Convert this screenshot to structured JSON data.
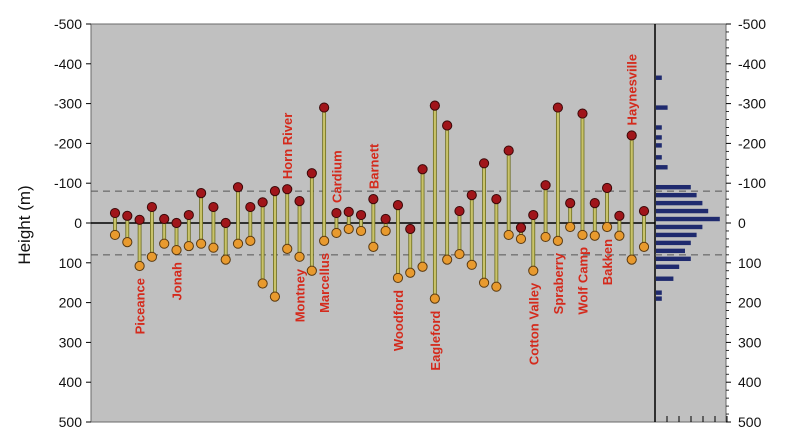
{
  "chart_data": {
    "type": "scatter",
    "ylabel": "Height (m)",
    "ylim": [
      -500,
      500
    ],
    "y_inverted": true,
    "y_ticks": [
      -500,
      -400,
      -300,
      -200,
      -100,
      0,
      100,
      200,
      300,
      400,
      500
    ],
    "reference_lines": [
      0,
      -80,
      80
    ],
    "grid": false,
    "colors": {
      "plot_bg": "#c0c0c0",
      "stem": "#6b6b1e",
      "top_marker": "#a0151a",
      "bottom_marker": "#e89a2e",
      "label": "#d42a1c",
      "histogram_bar": "#1f2a6e"
    },
    "stages": [
      {
        "top": -25,
        "bottom": 30
      },
      {
        "top": -18,
        "bottom": 48
      },
      {
        "top": -8,
        "bottom": 108
      },
      {
        "top": -40,
        "bottom": 85
      },
      {
        "top": -10,
        "bottom": 52
      },
      {
        "top": 0,
        "bottom": 68
      },
      {
        "top": -20,
        "bottom": 58
      },
      {
        "top": -75,
        "bottom": 52
      },
      {
        "top": -40,
        "bottom": 62
      },
      {
        "top": 0,
        "bottom": 92
      },
      {
        "top": -90,
        "bottom": 52
      },
      {
        "top": -40,
        "bottom": 45
      },
      {
        "top": -52,
        "bottom": 152
      },
      {
        "top": -80,
        "bottom": 185
      },
      {
        "top": -85,
        "bottom": 65
      },
      {
        "top": -55,
        "bottom": 85
      },
      {
        "top": -125,
        "bottom": 120
      },
      {
        "top": -290,
        "bottom": 45
      },
      {
        "top": -25,
        "bottom": 25
      },
      {
        "top": -28,
        "bottom": 15
      },
      {
        "top": -20,
        "bottom": 20
      },
      {
        "top": -60,
        "bottom": 60
      },
      {
        "top": -10,
        "bottom": 20
      },
      {
        "top": -45,
        "bottom": 138
      },
      {
        "top": 15,
        "bottom": 125
      },
      {
        "top": -135,
        "bottom": 110
      },
      {
        "top": -295,
        "bottom": 190
      },
      {
        "top": -245,
        "bottom": 92
      },
      {
        "top": -30,
        "bottom": 78
      },
      {
        "top": -70,
        "bottom": 105
      },
      {
        "top": -150,
        "bottom": 150
      },
      {
        "top": -60,
        "bottom": 160
      },
      {
        "top": -182,
        "bottom": 30
      },
      {
        "top": 12,
        "bottom": 40
      },
      {
        "top": -20,
        "bottom": 120
      },
      {
        "top": -95,
        "bottom": 35
      },
      {
        "top": -290,
        "bottom": 45
      },
      {
        "top": -50,
        "bottom": 10
      },
      {
        "top": -275,
        "bottom": 30
      },
      {
        "top": -50,
        "bottom": 32
      },
      {
        "top": -88,
        "bottom": 10
      },
      {
        "top": -18,
        "bottom": 32
      },
      {
        "top": -220,
        "bottom": 92
      },
      {
        "top": -30,
        "bottom": 60
      }
    ],
    "basin_labels": [
      {
        "text": "Piceance",
        "stage": 2,
        "anchor": "end"
      },
      {
        "text": "Jonah",
        "stage": 5,
        "anchor": "end"
      },
      {
        "text": "Horn River",
        "stage": 14,
        "anchor": "start"
      },
      {
        "text": "Montney",
        "stage": 15,
        "anchor": "end"
      },
      {
        "text": "Marcellus",
        "stage": 17,
        "anchor": "end"
      },
      {
        "text": "Cardium",
        "stage": 18,
        "anchor": "start"
      },
      {
        "text": "Barnett",
        "stage": 21,
        "anchor": "start"
      },
      {
        "text": "Woodford",
        "stage": 23,
        "anchor": "end"
      },
      {
        "text": "Eagleford",
        "stage": 26,
        "anchor": "end"
      },
      {
        "text": "Cotton Valley",
        "stage": 34,
        "anchor": "end"
      },
      {
        "text": "Spraberry",
        "stage": 36,
        "anchor": "end"
      },
      {
        "text": "Wolf Camp",
        "stage": 38,
        "anchor": "end"
      },
      {
        "text": "Bakken",
        "stage": 40,
        "anchor": "end"
      },
      {
        "text": "Haynesville",
        "stage": 42,
        "anchor": "start"
      }
    ],
    "histogram": {
      "bins": [
        -365,
        -290,
        -240,
        -215,
        -195,
        -165,
        -140,
        -90,
        -70,
        -50,
        -30,
        -10,
        10,
        30,
        50,
        70,
        90,
        110,
        140,
        175,
        190
      ],
      "counts": [
        1,
        2,
        1,
        1,
        1,
        1,
        2,
        6,
        7,
        8,
        9,
        11,
        8,
        7,
        6,
        5,
        6,
        4,
        3,
        1,
        1
      ]
    }
  }
}
